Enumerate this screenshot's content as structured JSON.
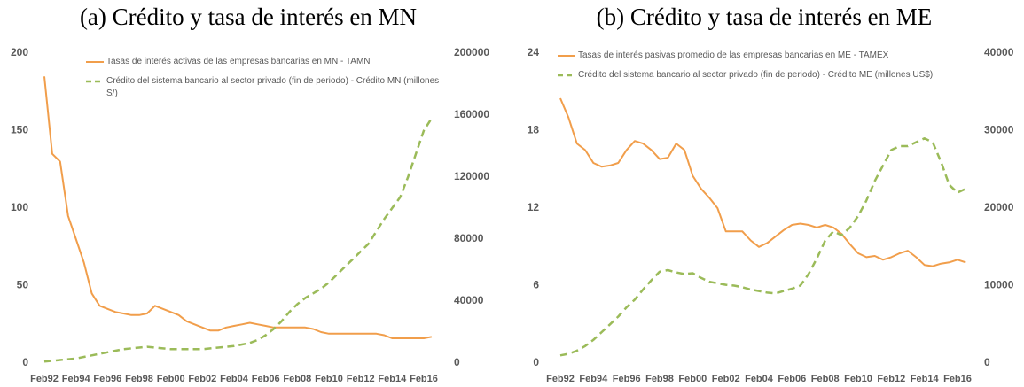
{
  "chart_data": [
    {
      "type": "line",
      "title": "(a) Crédito y tasa de interés en MN",
      "categories": [
        "Feb92",
        null,
        null,
        null,
        "Feb94",
        null,
        null,
        null,
        "Feb96",
        null,
        null,
        null,
        "Feb98",
        null,
        null,
        null,
        "Feb00",
        null,
        null,
        null,
        "Feb02",
        null,
        null,
        null,
        "Feb04",
        null,
        null,
        null,
        "Feb06",
        null,
        null,
        null,
        "Feb08",
        null,
        null,
        null,
        "Feb10",
        null,
        null,
        null,
        "Feb12",
        null,
        null,
        null,
        "Feb14",
        null,
        null,
        null,
        "Feb16",
        null
      ],
      "series": [
        {
          "name": "Tasas de interés activas de las empresas bancarias en MN - TAMN",
          "color": "#f19e4b",
          "axis": "y",
          "values": [
            185,
            135,
            130,
            95,
            80,
            65,
            45,
            37,
            35,
            33,
            32,
            31,
            31,
            32,
            37,
            35,
            33,
            31,
            27,
            25,
            23,
            21,
            21,
            23,
            24,
            25,
            26,
            25,
            24,
            23,
            23,
            23,
            23,
            23,
            22,
            20,
            19,
            19,
            19,
            19,
            19,
            19,
            19,
            18,
            16,
            16,
            16,
            16,
            16,
            17
          ]
        },
        {
          "name": "Crédito del sistema bancario al sector privado (fin de periodo) - Crédito MN (millones S/)",
          "color": "#9bbb59",
          "axis": "y2",
          "dashed": true,
          "values": [
            1000,
            1500,
            2000,
            2500,
            3000,
            4000,
            5000,
            6000,
            7000,
            8000,
            9000,
            9500,
            10000,
            10500,
            10000,
            9500,
            9000,
            9000,
            9000,
            9000,
            9000,
            9500,
            10000,
            10500,
            11000,
            12000,
            13000,
            15000,
            18000,
            22000,
            27000,
            33000,
            38000,
            42000,
            45000,
            48000,
            52000,
            57000,
            62000,
            67000,
            72000,
            77000,
            85000,
            93000,
            100000,
            107000,
            120000,
            135000,
            150000,
            158000
          ]
        }
      ],
      "ylim": [
        0,
        200
      ],
      "yticks": [
        0,
        50,
        100,
        150,
        200
      ],
      "y2lim": [
        0,
        200000
      ],
      "y2ticks": [
        0,
        40000,
        80000,
        120000,
        160000,
        200000
      ],
      "grid": false,
      "legend": "top"
    },
    {
      "type": "line",
      "title": "(b) Crédito y tasa de interés en ME",
      "categories": [
        "Feb92",
        null,
        null,
        null,
        "Feb94",
        null,
        null,
        null,
        "Feb96",
        null,
        null,
        null,
        "Feb98",
        null,
        null,
        null,
        "Feb00",
        null,
        null,
        null,
        "Feb02",
        null,
        null,
        null,
        "Feb04",
        null,
        null,
        null,
        "Feb06",
        null,
        null,
        null,
        "Feb08",
        null,
        null,
        null,
        "Feb10",
        null,
        null,
        null,
        "Feb12",
        null,
        null,
        null,
        "Feb14",
        null,
        null,
        null,
        "Feb16",
        null
      ],
      "series": [
        {
          "name": "Tasas de interés pasivas promedio de las empresas bancarias en ME - TAMEX",
          "color": "#f19e4b",
          "axis": "y",
          "values": [
            20.5,
            19,
            17,
            16.5,
            15.5,
            15.2,
            15.3,
            15.5,
            16.5,
            17.2,
            17,
            16.5,
            15.8,
            15.9,
            17,
            16.5,
            14.5,
            13.5,
            12.8,
            12,
            10.2,
            10.2,
            10.2,
            9.5,
            9,
            9.3,
            9.8,
            10.3,
            10.7,
            10.8,
            10.7,
            10.5,
            10.7,
            10.5,
            10,
            9.2,
            8.5,
            8.2,
            8.3,
            8,
            8.2,
            8.5,
            8.7,
            8.2,
            7.6,
            7.5,
            7.7,
            7.8,
            8,
            7.8
          ]
        },
        {
          "name": "Crédito del sistema bancario al sector privado (fin de periodo) - Crédito ME (millones US$)",
          "color": "#9bbb59",
          "axis": "y2",
          "dashed": true,
          "values": [
            1000,
            1200,
            1600,
            2200,
            3000,
            4000,
            5000,
            6000,
            7200,
            8200,
            9500,
            10700,
            11800,
            12000,
            11700,
            11500,
            11600,
            11000,
            10500,
            10300,
            10100,
            10000,
            9800,
            9500,
            9300,
            9100,
            9000,
            9300,
            9600,
            10000,
            11500,
            13500,
            15800,
            17000,
            16500,
            17500,
            19000,
            21000,
            23500,
            25500,
            27500,
            28000,
            28000,
            28500,
            29000,
            28500,
            26000,
            23000,
            22000,
            22500
          ]
        }
      ],
      "ylim": [
        0,
        24
      ],
      "yticks": [
        0,
        6,
        12,
        18,
        24
      ],
      "y2lim": [
        0,
        40000
      ],
      "y2ticks": [
        0,
        10000,
        20000,
        30000,
        40000
      ],
      "grid": false,
      "legend": "top"
    }
  ]
}
